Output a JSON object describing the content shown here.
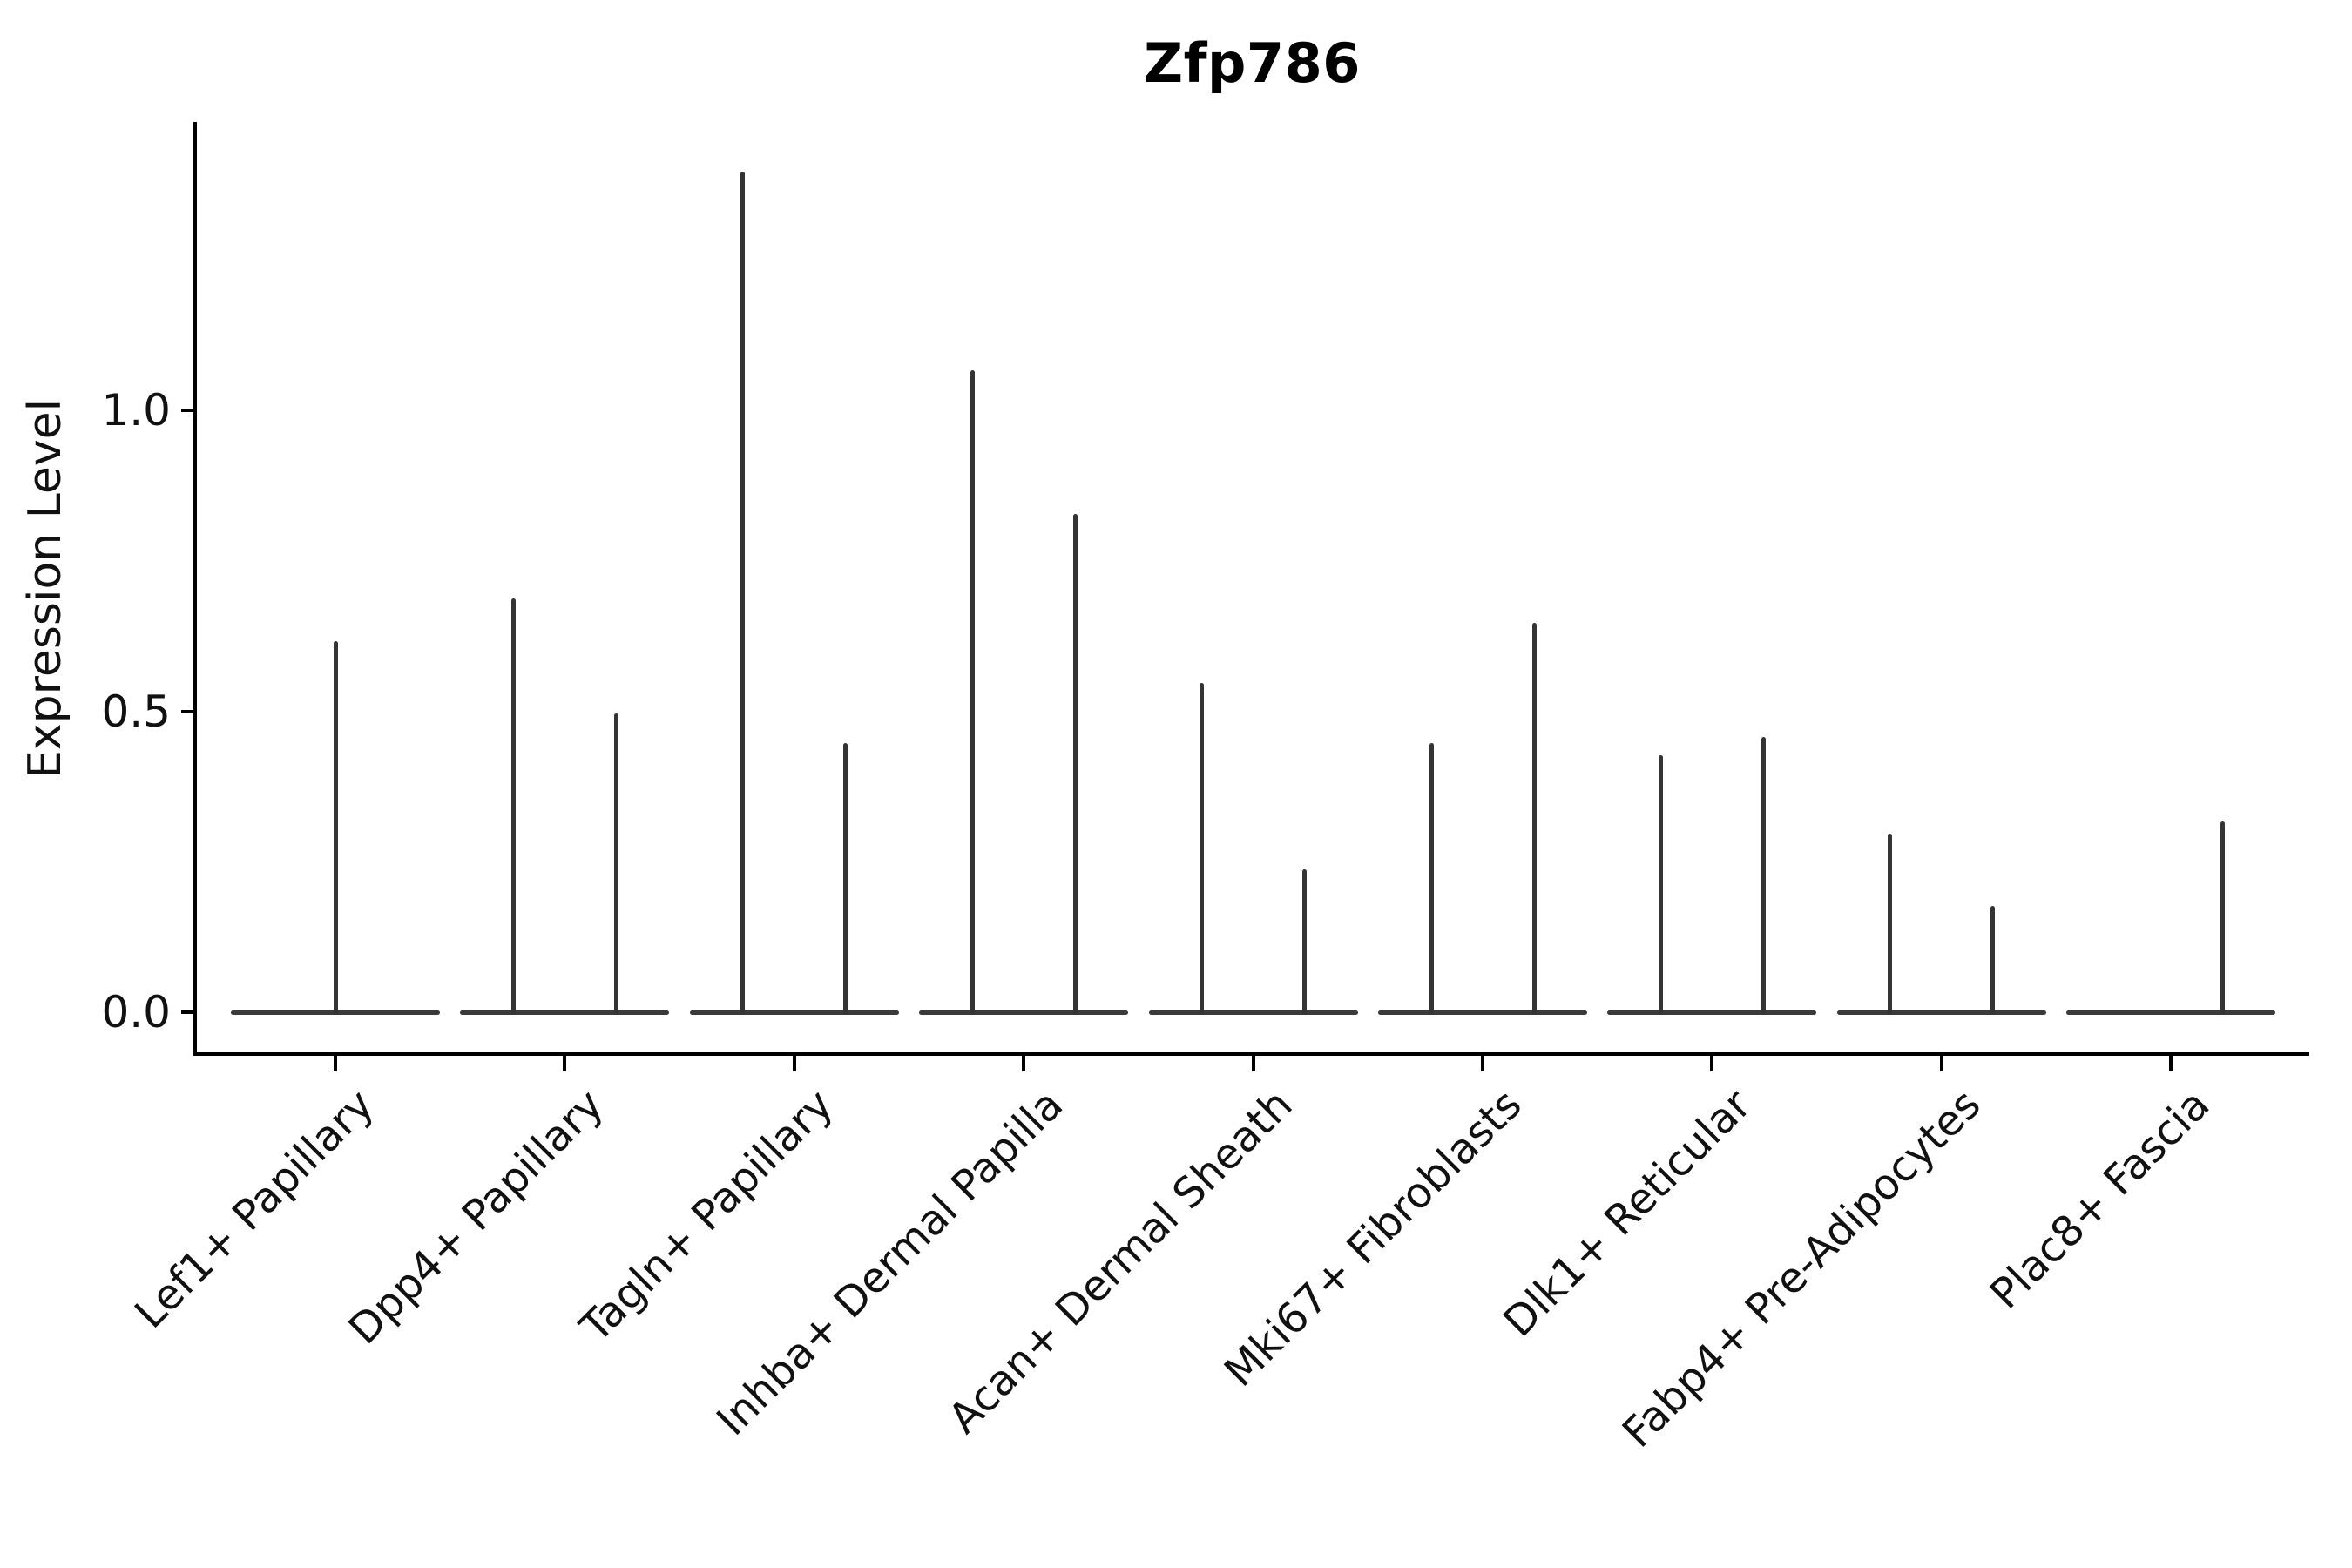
{
  "figure": {
    "title": "Zfp786",
    "y_axis_label": "Expression Level"
  },
  "chart_data": {
    "type": "violin",
    "title": "Zfp786",
    "xlabel": "",
    "ylabel": "Expression Level",
    "yticks": [
      "0.0",
      "0.5",
      "1.0"
    ],
    "ytick_values": [
      0.0,
      0.5,
      1.0
    ],
    "ylim": [
      -0.07,
      1.48
    ],
    "grid": false,
    "legend_position": "none",
    "categories": [
      "Lef1+ Papillary",
      "Dpp4+ Papillary",
      "Tagln+ Papillary",
      "Inhba+ Dermal Papilla",
      "Acan+ Dermal Sheath",
      "Mki67+ Fibroblasts",
      "Dlk1+ Reticular",
      "Fabp4+ Pre-Adipocytes",
      "Plac8+ Fascia"
    ],
    "series": [
      {
        "category": "Lef1+ Papillary",
        "baseline_value": 0.0,
        "peaks": [
          {
            "slot": "center",
            "max_expression": 0.62
          }
        ]
      },
      {
        "category": "Dpp4+ Papillary",
        "baseline_value": 0.0,
        "peaks": [
          {
            "slot": "left",
            "max_expression": 0.69
          },
          {
            "slot": "right",
            "max_expression": 0.5
          }
        ]
      },
      {
        "category": "Tagln+ Papillary",
        "baseline_value": 0.0,
        "peaks": [
          {
            "slot": "left",
            "max_expression": 1.4
          },
          {
            "slot": "right",
            "max_expression": 0.45
          }
        ]
      },
      {
        "category": "Inhba+ Dermal Papilla",
        "baseline_value": 0.0,
        "peaks": [
          {
            "slot": "left",
            "max_expression": 1.07
          },
          {
            "slot": "right",
            "max_expression": 0.83
          }
        ]
      },
      {
        "category": "Acan+ Dermal Sheath",
        "baseline_value": 0.0,
        "peaks": [
          {
            "slot": "left",
            "max_expression": 0.55
          },
          {
            "slot": "right",
            "max_expression": 0.24
          }
        ]
      },
      {
        "category": "Mki67+ Fibroblasts",
        "baseline_value": 0.0,
        "peaks": [
          {
            "slot": "left",
            "max_expression": 0.45
          },
          {
            "slot": "right",
            "max_expression": 0.65
          }
        ]
      },
      {
        "category": "Dlk1+ Reticular",
        "baseline_value": 0.0,
        "peaks": [
          {
            "slot": "left",
            "max_expression": 0.43
          },
          {
            "slot": "right",
            "max_expression": 0.46
          }
        ]
      },
      {
        "category": "Fabp4+ Pre-Adipocytes",
        "baseline_value": 0.0,
        "peaks": [
          {
            "slot": "left",
            "max_expression": 0.3
          },
          {
            "slot": "right",
            "max_expression": 0.18
          }
        ]
      },
      {
        "category": "Plac8+ Fascia",
        "baseline_value": 0.0,
        "peaks": [
          {
            "slot": "right",
            "max_expression": 0.32
          }
        ]
      }
    ]
  }
}
